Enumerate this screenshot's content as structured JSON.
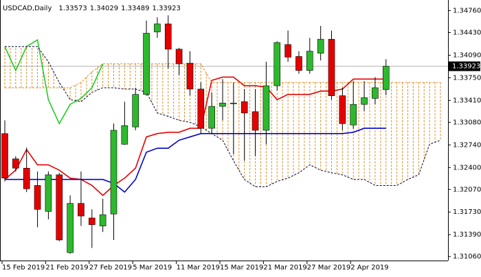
{
  "chart_data": {
    "type": "candlestick",
    "title": "USDCAD,Daily",
    "categories": [
      "15 Feb 2019",
      null,
      null,
      null,
      "21 Feb 2019",
      null,
      null,
      null,
      "27 Feb 2019",
      null,
      null,
      null,
      "5 Mar 2019",
      null,
      null,
      null,
      "11 Mar 2019",
      null,
      null,
      null,
      "15 Mar 2019",
      null,
      null,
      null,
      "21 Mar 2019",
      null,
      null,
      null,
      "27 Mar 2019",
      null,
      null,
      null,
      "2 Apr 2019",
      null,
      null,
      null,
      null,
      null,
      null,
      null,
      null
    ],
    "open": [
      1.3291,
      1.3253,
      1.3239,
      1.3213,
      1.3174,
      1.3229,
      1.3112,
      1.3186,
      1.3164,
      1.3152,
      1.317,
      1.3275,
      1.3301,
      1.335,
      1.3444,
      1.3456,
      1.3418,
      1.3397,
      1.3358,
      1.3299,
      1.3332,
      1.3336,
      1.3339,
      1.3324,
      1.3296,
      1.3363,
      1.3425,
      1.3407,
      1.3386,
      1.3412,
      1.3433,
      1.3348,
      1.3304,
      1.3335,
      1.3344,
      1.33573,
      null,
      null,
      null,
      null,
      null
    ],
    "high": [
      1.3311,
      1.3257,
      1.327,
      1.3234,
      1.3234,
      1.3232,
      1.3198,
      1.3234,
      1.3177,
      1.3193,
      1.3306,
      1.3339,
      1.336,
      1.3461,
      1.3466,
      1.3469,
      1.342,
      1.3415,
      1.3368,
      1.3353,
      1.3373,
      1.3368,
      1.3358,
      1.3358,
      1.3399,
      1.343,
      1.3446,
      1.3415,
      1.3435,
      1.3453,
      1.3446,
      1.336,
      1.337,
      1.337,
      1.3376,
      1.34029,
      null,
      null,
      null,
      null,
      null
    ],
    "low": [
      1.3219,
      1.3234,
      1.3203,
      1.315,
      1.3162,
      1.3129,
      1.311,
      1.3152,
      1.3119,
      1.3143,
      1.3131,
      1.3274,
      1.3296,
      1.3348,
      1.3435,
      1.3389,
      1.3379,
      1.3348,
      1.3291,
      1.3291,
      1.3311,
      1.326,
      1.325,
      1.3257,
      1.3275,
      1.3356,
      1.3399,
      1.3381,
      1.3381,
      1.3401,
      1.3342,
      1.3296,
      1.3298,
      1.3325,
      1.3335,
      1.33489,
      null,
      null,
      null,
      null,
      null
    ],
    "close": [
      1.3224,
      1.3239,
      1.3208,
      1.3177,
      1.3229,
      1.3131,
      1.3186,
      1.3167,
      1.3154,
      1.3169,
      1.3296,
      1.3303,
      1.335,
      1.3442,
      1.3456,
      1.3418,
      1.3396,
      1.3358,
      1.3299,
      1.3332,
      1.3337,
      1.3337,
      1.3322,
      1.3296,
      1.3363,
      1.3428,
      1.3406,
      1.3386,
      1.3415,
      1.3433,
      1.3348,
      1.3306,
      1.3335,
      1.3345,
      1.336,
      1.33923,
      null,
      null,
      null,
      null,
      null
    ],
    "up_color": "#2db92d",
    "down_color": "#e60000",
    "wick_color": "#000000",
    "series": [
      {
        "color": "#e60000",
        "dashed": false,
        "values": [
          1.3222,
          1.3236,
          1.3267,
          1.3244,
          1.3244,
          1.3236,
          1.3224,
          1.3222,
          1.3213,
          1.3198,
          1.3213,
          1.3224,
          1.3239,
          1.3286,
          1.3291,
          1.3293,
          1.3293,
          1.3299,
          1.3299,
          1.3371,
          1.3376,
          1.3376,
          1.3363,
          1.3363,
          1.3361,
          1.3342,
          1.335,
          1.335,
          1.335,
          1.3355,
          1.3355,
          1.3358,
          1.3373,
          1.3373,
          1.3373,
          1.3373,
          null,
          null,
          null,
          null,
          null
        ]
      },
      {
        "color": "#0000cc",
        "dashed": false,
        "values": [
          1.3222,
          1.3222,
          1.3222,
          1.3222,
          1.3222,
          1.3222,
          1.3222,
          1.3222,
          1.3222,
          1.3222,
          1.3216,
          1.3203,
          1.3222,
          1.3263,
          1.3269,
          1.3269,
          1.3281,
          1.3286,
          1.3291,
          1.3291,
          1.3291,
          1.3291,
          1.3291,
          1.3291,
          1.3291,
          1.3291,
          1.3291,
          1.3291,
          1.3291,
          1.3291,
          1.3291,
          1.3291,
          1.3293,
          1.3299,
          1.3299,
          1.3299,
          null,
          null,
          null,
          null,
          null
        ]
      },
      {
        "color": "#22cc22",
        "dashed": false,
        "values": [
          1.3422,
          1.3386,
          1.3422,
          1.3432,
          1.3342,
          1.3306,
          1.3335,
          1.3344,
          1.336,
          1.3396,
          null,
          null,
          null,
          null,
          null,
          null,
          null,
          null,
          null,
          null,
          null,
          null,
          null,
          null,
          null,
          null,
          null,
          null,
          null,
          null,
          null,
          null,
          null,
          null,
          null,
          null,
          null,
          null,
          null,
          null,
          null
        ]
      },
      {
        "color": "#e08a1e",
        "dashed": true,
        "values": [
          1.336,
          1.336,
          1.336,
          1.336,
          1.336,
          1.336,
          1.336,
          1.3368,
          1.3384,
          1.3396,
          1.3396,
          1.3396,
          1.3396,
          1.3396,
          1.3396,
          1.3396,
          1.3396,
          1.3396,
          1.3396,
          1.3368,
          1.3368,
          1.3368,
          1.3368,
          1.3368,
          1.3368,
          1.3368,
          1.3368,
          1.3368,
          1.3368,
          1.3368,
          1.3368,
          1.3368,
          1.3368,
          1.3368,
          1.3368,
          1.3368,
          1.3368,
          1.3368,
          1.3368,
          1.3368,
          1.3368
        ]
      },
      {
        "color": "#000033",
        "dashed": true,
        "values": [
          1.3422,
          1.3422,
          1.3422,
          1.3422,
          1.3399,
          1.3368,
          1.3342,
          1.3339,
          1.3353,
          1.336,
          1.336,
          1.3358,
          1.3358,
          1.3353,
          1.3322,
          1.3317,
          1.3311,
          1.3308,
          1.3301,
          1.3291,
          1.3281,
          1.325,
          1.3222,
          1.3211,
          1.3211,
          1.3219,
          1.3224,
          1.3232,
          1.3244,
          1.3236,
          1.3232,
          1.3229,
          1.3222,
          1.3222,
          1.3213,
          1.3213,
          1.3213,
          1.3222,
          1.3229,
          1.3275,
          1.3281
        ]
      }
    ],
    "cloud_color": "#e08a1e",
    "ylim": [
      1.31,
      1.3492
    ],
    "yticks": [
      {
        "value": 1.3476,
        "label": "1.34760"
      },
      {
        "value": 1.3443,
        "label": "1.34430"
      },
      {
        "value": 1.3409,
        "label": "1.34090"
      },
      {
        "value": 1.3375,
        "label": "1.33750"
      },
      {
        "value": 1.3341,
        "label": "1.33410"
      },
      {
        "value": 1.3308,
        "label": "1.33080"
      },
      {
        "value": 1.3274,
        "label": "1.32740"
      },
      {
        "value": 1.324,
        "label": "1.32400"
      },
      {
        "value": 1.3207,
        "label": "1.32070"
      },
      {
        "value": 1.3173,
        "label": "1.31730"
      },
      {
        "value": 1.3139,
        "label": "1.31390"
      },
      {
        "value": 1.3106,
        "label": "1.31060"
      }
    ]
  }
}
